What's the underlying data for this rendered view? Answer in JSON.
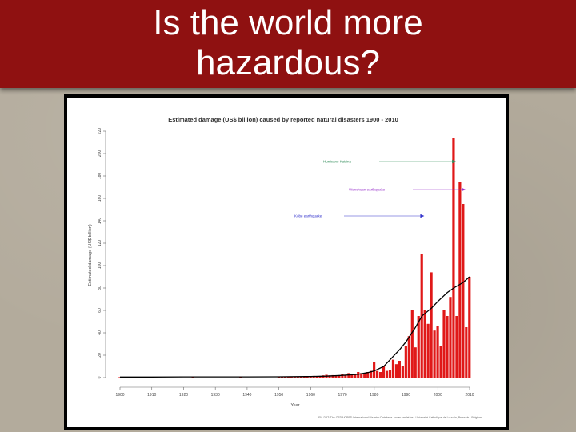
{
  "slide": {
    "title_line1": "Is the world more",
    "title_line2": "hazardous?"
  },
  "colors": {
    "title_bar": "#8f1111",
    "bars": "#e01818",
    "trend_line": "#000000",
    "annotation_green": "#2e8b57",
    "annotation_purple": "#9933cc",
    "annotation_blue": "#3333cc"
  },
  "chart_data": {
    "type": "bar",
    "title": "Estimated damage (US$ billion) caused by reported natural disasters 1900 - 2010",
    "xlabel": "Year",
    "ylabel": "Estimated damage (US$ billion)",
    "xlim": [
      1900,
      2010
    ],
    "ylim": [
      0,
      220
    ],
    "x_ticks": [
      "1900",
      "1910",
      "1920",
      "1930",
      "1940",
      "1950",
      "1960",
      "1970",
      "1980",
      "1990",
      "2000",
      "2010"
    ],
    "y_ticks": [
      "0",
      "20",
      "40",
      "60",
      "80",
      "100",
      "120",
      "140",
      "160",
      "180",
      "200",
      "220"
    ],
    "grid": false,
    "series": [
      {
        "type": "bar",
        "x": [
          1900,
          1901,
          1902,
          1903,
          1904,
          1905,
          1906,
          1907,
          1908,
          1909,
          1910,
          1911,
          1912,
          1913,
          1914,
          1915,
          1916,
          1917,
          1918,
          1919,
          1920,
          1921,
          1922,
          1923,
          1924,
          1925,
          1926,
          1927,
          1928,
          1929,
          1930,
          1931,
          1932,
          1933,
          1934,
          1935,
          1936,
          1937,
          1938,
          1939,
          1940,
          1941,
          1942,
          1943,
          1944,
          1945,
          1946,
          1947,
          1948,
          1949,
          1950,
          1951,
          1952,
          1953,
          1954,
          1955,
          1956,
          1957,
          1958,
          1959,
          1960,
          1961,
          1962,
          1963,
          1964,
          1965,
          1966,
          1967,
          1968,
          1969,
          1970,
          1971,
          1972,
          1973,
          1974,
          1975,
          1976,
          1977,
          1978,
          1979,
          1980,
          1981,
          1982,
          1983,
          1984,
          1985,
          1986,
          1987,
          1988,
          1989,
          1990,
          1991,
          1992,
          1993,
          1994,
          1995,
          1996,
          1997,
          1998,
          1999,
          2000,
          2001,
          2002,
          2003,
          2004,
          2005,
          2006,
          2007,
          2008,
          2009,
          2010
        ],
        "values": [
          0.1,
          0,
          0,
          0,
          0,
          0,
          0.5,
          0,
          0,
          0,
          0,
          0,
          0,
          0,
          0,
          0,
          0,
          0,
          0,
          0,
          0,
          0,
          0,
          0.6,
          0,
          0,
          0,
          0,
          0,
          0,
          0,
          0,
          0,
          0,
          0,
          0,
          0,
          0,
          0.2,
          0,
          0,
          0,
          0,
          0,
          0,
          0,
          0,
          0,
          0,
          0,
          0.3,
          0.4,
          0.3,
          0.5,
          0.8,
          0.5,
          0.6,
          0.7,
          0.9,
          0.9,
          1.0,
          1.5,
          1.2,
          1.5,
          2,
          2.5,
          2,
          2.2,
          2,
          1.5,
          3,
          2.5,
          4,
          3,
          3,
          5,
          4,
          4,
          5,
          6,
          14,
          6,
          5,
          10,
          6,
          7,
          16,
          12,
          15,
          10,
          28,
          37,
          60,
          27,
          55,
          110,
          60,
          48,
          94,
          42,
          46,
          28,
          60,
          55,
          72,
          214,
          55,
          175,
          155,
          45,
          90
        ]
      },
      {
        "type": "line",
        "x": [
          1900,
          1910,
          1920,
          1930,
          1940,
          1950,
          1960,
          1965,
          1970,
          1975,
          1978,
          1980,
          1983,
          1985,
          1988,
          1990,
          1993,
          1995,
          1998,
          2000,
          2003,
          2005,
          2008,
          2010
        ],
        "values": [
          0.5,
          0.5,
          0.6,
          0.6,
          0.6,
          0.7,
          1.0,
          1.3,
          2,
          3,
          4.5,
          6,
          10,
          16,
          25,
          32,
          45,
          55,
          62,
          68,
          76,
          80,
          85,
          90
        ]
      }
    ],
    "annotations": [
      {
        "text": "Hurricane Katrina",
        "x": 2005,
        "color": "green"
      },
      {
        "text": "Wenchuan earthquake",
        "x": 2008,
        "color": "purple"
      },
      {
        "text": "Kobe earthquake",
        "x": 1995,
        "color": "blue"
      }
    ],
    "source": "EM-DAT: The OFDA/CRED International Disaster Database - www.emdat.be - Université Catholique de Louvain, Brussels - Belgium"
  }
}
